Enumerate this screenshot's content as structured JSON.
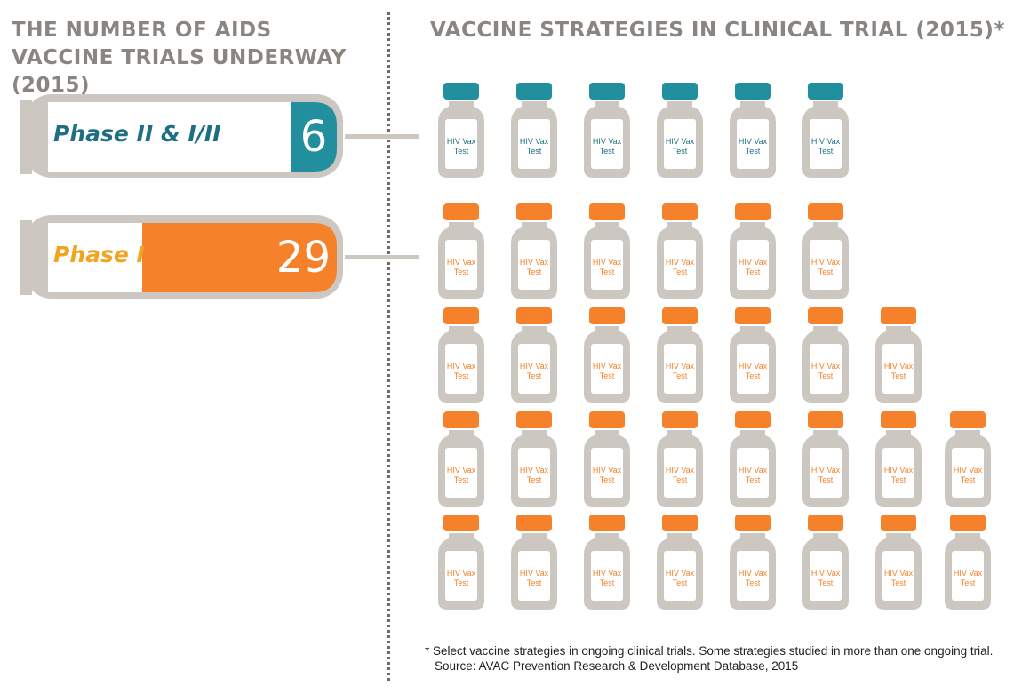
{
  "left_title": "THE NUMBER OF AIDS VACCINE TRIALS UNDERWAY (2015)",
  "right_title": "VACCINE STRATEGIES IN CLINICAL TRIAL (2015)*",
  "footnote": {
    "line1": "* Select vaccine strategies in ongoing clinical trials. Some strategies studied in more than one ongoing trial.",
    "line2": "Source: AVAC Prevention Research & Development Database, 2015"
  },
  "vial_label_line1": "HIV Vax",
  "vial_label_line2": "Test",
  "colors": {
    "teal": "#218f9e",
    "teal_text": "#1e6f83",
    "orange": "#f5822a",
    "phase1_text": "#f2a421",
    "gray": "#ccc7c1",
    "title_gray": "#8a8581"
  },
  "chart_data": {
    "type": "pictograph",
    "title": "THE NUMBER OF AIDS VACCINE TRIALS UNDERWAY (2015)",
    "categories": [
      "Phase II & I/II",
      "Phase I"
    ],
    "values": [
      6,
      29
    ],
    "vial_rows": [
      [
        6
      ],
      [
        6,
        7,
        8,
        8
      ]
    ],
    "series": [
      {
        "name": "Phase II & I/II",
        "value": 6,
        "color": "#218f9e"
      },
      {
        "name": "Phase I",
        "value": 29,
        "color": "#f5822a"
      }
    ]
  }
}
